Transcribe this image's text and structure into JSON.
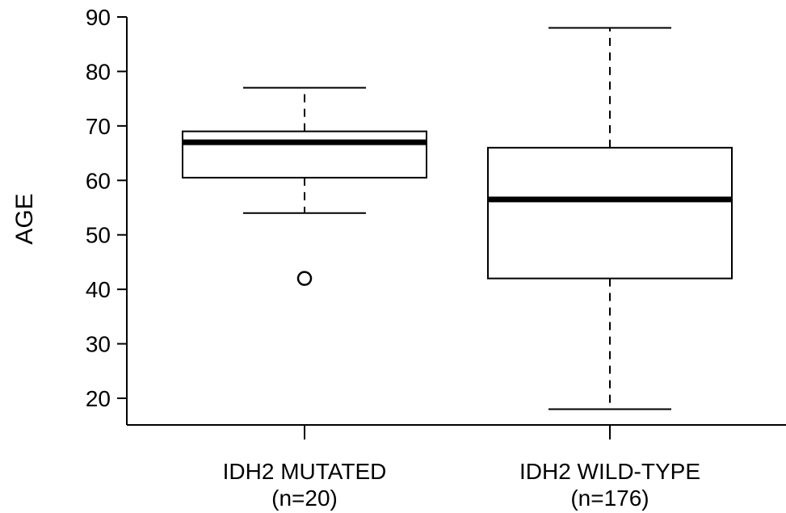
{
  "chart_data": {
    "type": "boxplot",
    "xlabel": "",
    "ylabel": "AGE",
    "ylim": [
      15,
      92
    ],
    "yticks": [
      20,
      30,
      40,
      50,
      60,
      70,
      80,
      90
    ],
    "grid": false,
    "categories": [
      {
        "label": "IDH2 MUTATED",
        "sublabel": "(n=20)"
      },
      {
        "label": "IDH2 WILD-TYPE",
        "sublabel": "(n=176)"
      }
    ],
    "boxes": [
      {
        "whisker_low": 54,
        "q1": 60.5,
        "median": 67,
        "q3": 69,
        "whisker_high": 77,
        "outliers": [
          42
        ]
      },
      {
        "whisker_low": 18,
        "q1": 42,
        "median": 56.5,
        "q3": 66,
        "whisker_high": 88,
        "outliers": []
      }
    ]
  }
}
